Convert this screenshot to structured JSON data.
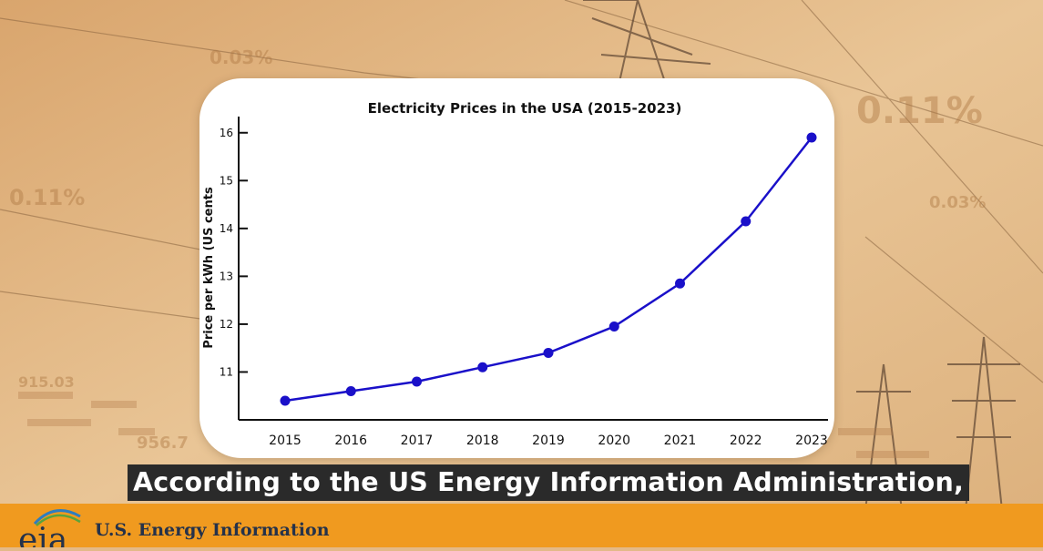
{
  "chart_data": {
    "type": "line",
    "title": "Electricity Prices in the USA (2015-2023)",
    "xlabel": "",
    "ylabel": "Price per kWh (US cents",
    "categories": [
      "2015",
      "2016",
      "2017",
      "2018",
      "2019",
      "2020",
      "2021",
      "2022",
      "2023"
    ],
    "series": [
      {
        "name": "Price per kWh",
        "values": [
          10.4,
          10.6,
          10.8,
          11.1,
          11.4,
          11.95,
          12.85,
          14.15,
          15.9
        ]
      }
    ],
    "y_ticks": [
      11,
      12,
      13,
      14,
      15,
      16
    ],
    "ylim": [
      10.0,
      16.3
    ],
    "grid": false,
    "colors": {
      "line": "#1a10c9",
      "axis": "#111111"
    }
  },
  "caption": {
    "text": "According to the US Energy Information Administration,"
  },
  "footer": {
    "logo_text": "eia",
    "org_name": "U.S. Energy Information"
  },
  "background_labels": [
    "0.11%",
    "0.03%",
    "0.11%",
    "0.03%",
    "956.7",
    "915.03"
  ],
  "colors": {
    "footer": "#f09a1f",
    "caption_bg": "#2a2a2a",
    "background": "#e3b988"
  }
}
